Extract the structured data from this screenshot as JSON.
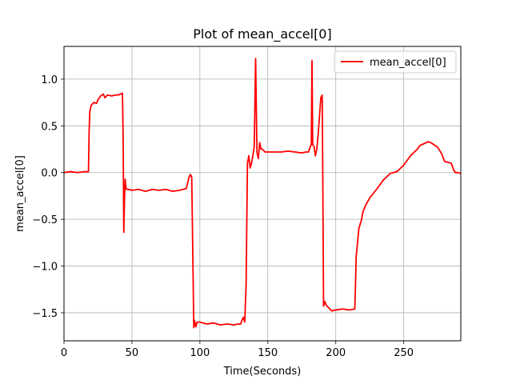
{
  "chart_data": {
    "type": "line",
    "title": "Plot of mean_accel[0]",
    "xlabel": "Time(Seconds)",
    "ylabel": "mean_accel[0]",
    "xlim": [
      0,
      292
    ],
    "ylim": [
      -1.8,
      1.35
    ],
    "xticks": [
      0,
      50,
      100,
      150,
      200,
      250
    ],
    "yticks": [
      -1.5,
      -1.0,
      -0.5,
      0.0,
      0.5,
      1.0
    ],
    "xtick_labels": [
      "0",
      "50",
      "100",
      "150",
      "200",
      "250"
    ],
    "ytick_labels": [
      "−1.5",
      "−1.0",
      "−0.5",
      "0.0",
      "0.5",
      "1.0"
    ],
    "grid": true,
    "legend_position": "top-right",
    "series": [
      {
        "name": "mean_accel[0]",
        "color": "#ff0000",
        "x": [
          0,
          5,
          10,
          15,
          18,
          18.5,
          19,
          20,
          22,
          24,
          25,
          27,
          29,
          30,
          32,
          35,
          38,
          40,
          43,
          43.5,
          44,
          44.5,
          45,
          45.5,
          46,
          48,
          50,
          55,
          60,
          65,
          70,
          75,
          80,
          85,
          90,
          92,
          93,
          94,
          95,
          95.5,
          96,
          97,
          98,
          100,
          105,
          110,
          115,
          120,
          125,
          128,
          130,
          131,
          132,
          133,
          134,
          135,
          136,
          137,
          138,
          139,
          140,
          141,
          142,
          143,
          144,
          145,
          146,
          148,
          150,
          155,
          160,
          165,
          170,
          175,
          178,
          180,
          181,
          182,
          182.5,
          183,
          184,
          185,
          186,
          187,
          188,
          189,
          190,
          190.5,
          191,
          192,
          193,
          195,
          197,
          200,
          205,
          210,
          214,
          214.5,
          215,
          217,
          219,
          220,
          222,
          225,
          230,
          235,
          240,
          245,
          250,
          255,
          260,
          262,
          265,
          268,
          270,
          272,
          275,
          278,
          280,
          285,
          287,
          288,
          290,
          292
        ],
        "y": [
          0.0,
          0.01,
          0.0,
          0.01,
          0.01,
          0.45,
          0.65,
          0.72,
          0.75,
          0.74,
          0.78,
          0.82,
          0.84,
          0.8,
          0.83,
          0.82,
          0.83,
          0.83,
          0.85,
          0.4,
          -0.64,
          -0.3,
          -0.07,
          -0.15,
          -0.18,
          -0.18,
          -0.19,
          -0.18,
          -0.2,
          -0.18,
          -0.19,
          -0.18,
          -0.2,
          -0.19,
          -0.17,
          -0.05,
          -0.02,
          -0.05,
          -1.1,
          -1.66,
          -1.58,
          -1.65,
          -1.6,
          -1.6,
          -1.62,
          -1.61,
          -1.63,
          -1.62,
          -1.63,
          -1.62,
          -1.62,
          -1.58,
          -1.55,
          -1.6,
          -1.2,
          0.1,
          0.18,
          0.05,
          0.1,
          0.18,
          0.28,
          1.22,
          0.22,
          0.15,
          0.32,
          0.25,
          0.25,
          0.22,
          0.22,
          0.22,
          0.22,
          0.23,
          0.22,
          0.21,
          0.22,
          0.22,
          0.27,
          0.3,
          1.2,
          0.3,
          0.28,
          0.18,
          0.25,
          0.4,
          0.6,
          0.8,
          0.83,
          -0.2,
          -1.43,
          -1.38,
          -1.42,
          -1.45,
          -1.48,
          -1.47,
          -1.46,
          -1.47,
          -1.46,
          -1.2,
          -0.9,
          -0.6,
          -0.5,
          -0.42,
          -0.35,
          -0.27,
          -0.18,
          -0.08,
          -0.01,
          0.01,
          0.08,
          0.18,
          0.25,
          0.29,
          0.31,
          0.33,
          0.32,
          0.3,
          0.27,
          0.2,
          0.12,
          0.1,
          0.02,
          0.0,
          0.0,
          -0.01
        ]
      }
    ]
  }
}
